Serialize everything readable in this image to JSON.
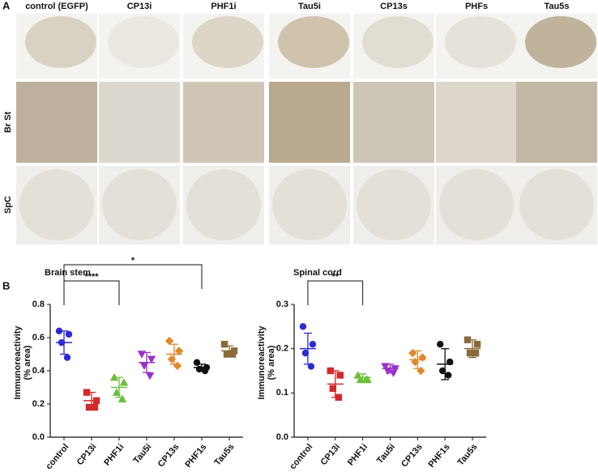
{
  "panel_a": {
    "label": "A",
    "columns": [
      "control (EGFP)",
      "CP13i",
      "PHF1i",
      "Tau5i",
      "CP13s",
      "PHFs",
      "Tau5s"
    ],
    "rows": [
      "Br St",
      "SpC"
    ]
  },
  "panel_b": {
    "label": "B"
  },
  "chart_data": [
    {
      "type": "dot",
      "title": "Brain stem",
      "ylabel": [
        "Immunoreactivity",
        "(% area)"
      ],
      "categories": [
        "control",
        "CP13i",
        "PHF1i",
        "Tau5i",
        "CP13s",
        "PHF1s",
        "Tau5s"
      ],
      "groups": [
        {
          "color": "#2b2bd6",
          "marker": "circle",
          "values": [
            0.64,
            0.62,
            0.57,
            0.48
          ],
          "mean": 0.57,
          "sd": 0.07
        },
        {
          "color": "#d42a2a",
          "marker": "square",
          "values": [
            0.27,
            0.22,
            0.18,
            0.18
          ],
          "mean": 0.22,
          "sd": 0.05
        },
        {
          "color": "#6abf3a",
          "marker": "triangle",
          "values": [
            0.36,
            0.33,
            0.27,
            0.23
          ],
          "mean": 0.3,
          "sd": 0.06
        },
        {
          "color": "#9b30c8",
          "marker": "triangle-down",
          "values": [
            0.5,
            0.47,
            0.43,
            0.37
          ],
          "mean": 0.45,
          "sd": 0.06
        },
        {
          "color": "#e08a2c",
          "marker": "diamond",
          "values": [
            0.58,
            0.52,
            0.47,
            0.43
          ],
          "mean": 0.5,
          "sd": 0.06
        },
        {
          "color": "#111111",
          "marker": "circle",
          "values": [
            0.45,
            0.42,
            0.41,
            0.4
          ],
          "mean": 0.42,
          "sd": 0.02
        },
        {
          "color": "#8a6a3a",
          "marker": "square",
          "values": [
            0.56,
            0.52,
            0.5,
            0.5
          ],
          "mean": 0.52,
          "sd": 0.03
        }
      ],
      "ylim": [
        0,
        0.8
      ],
      "yticks": [
        {
          "value": 0,
          "label": "0.0"
        },
        0.2,
        0.4,
        0.6,
        0.8
      ],
      "annotations": [
        {
          "text": "****",
          "from": "control",
          "to": "PHF1i"
        },
        {
          "text": "*",
          "from": "control",
          "to": "PHF1s"
        }
      ]
    },
    {
      "type": "dot",
      "title": "Spinal cord",
      "ylabel": [
        "Immunoreactivity",
        "(% area)"
      ],
      "categories": [
        "control",
        "CP13i",
        "PHF1i",
        "Tau5i",
        "CP13s",
        "PHF1s",
        "Tau5s"
      ],
      "groups": [
        {
          "color": "#2b2bd6",
          "marker": "circle",
          "values": [
            0.25,
            0.21,
            0.19,
            0.16
          ],
          "mean": 0.2,
          "sd": 0.035
        },
        {
          "color": "#d42a2a",
          "marker": "square",
          "values": [
            0.15,
            0.14,
            0.11,
            0.09
          ],
          "mean": 0.12,
          "sd": 0.03
        },
        {
          "color": "#6abf3a",
          "marker": "triangle",
          "values": [
            0.14,
            0.13,
            0.13,
            0.13
          ],
          "mean": 0.135,
          "sd": 0.008
        },
        {
          "color": "#9b30c8",
          "marker": "triangle-down",
          "values": [
            0.16,
            0.155,
            0.15,
            0.145
          ],
          "mean": 0.155,
          "sd": 0.01
        },
        {
          "color": "#e08a2c",
          "marker": "diamond",
          "values": [
            0.19,
            0.18,
            0.17,
            0.15
          ],
          "mean": 0.175,
          "sd": 0.02
        },
        {
          "color": "#111111",
          "marker": "circle",
          "values": [
            0.21,
            0.17,
            0.15,
            0.14
          ],
          "mean": 0.165,
          "sd": 0.035
        },
        {
          "color": "#8a6a3a",
          "marker": "square",
          "values": [
            0.22,
            0.21,
            0.19,
            0.19
          ],
          "mean": 0.2,
          "sd": 0.02
        }
      ],
      "ylim": [
        0,
        0.3
      ],
      "yticks": [
        {
          "value": 0,
          "label": "0.0"
        },
        0.1,
        0.2,
        0.3
      ],
      "annotations": [
        {
          "text": "**",
          "from": "control",
          "to": "PHF1i"
        }
      ]
    }
  ]
}
